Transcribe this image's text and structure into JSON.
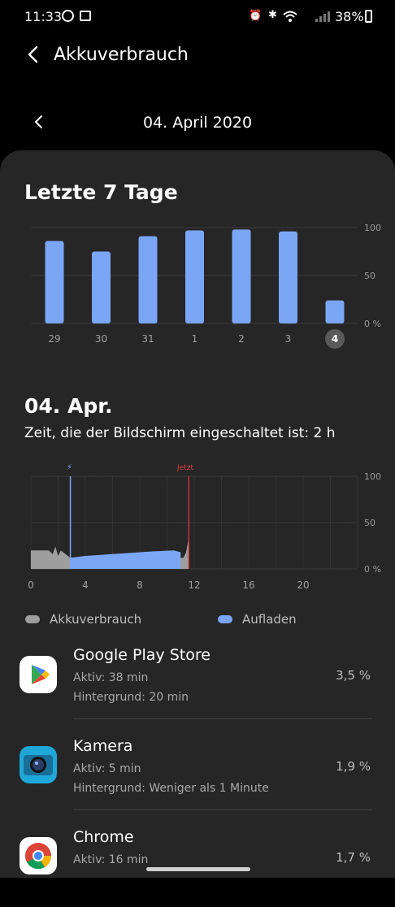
{
  "status": {
    "time": "11:33",
    "battery": "38%"
  },
  "header": {
    "title": "Akkuverbrauch",
    "date": "04. April 2020"
  },
  "week": {
    "title": "Letzte 7 Tage",
    "y_ticks": [
      "100",
      "50",
      "0 %"
    ]
  },
  "chart_data": [
    {
      "type": "bar",
      "categories": [
        "29",
        "30",
        "31",
        "1",
        "2",
        "3",
        "4"
      ],
      "values": [
        86,
        75,
        91,
        97,
        98,
        96,
        24
      ],
      "selected": "4",
      "ylim": [
        0,
        100
      ],
      "y_ticks": [
        "100",
        "50",
        "0 %"
      ],
      "bar_color": "#7aa6f5"
    },
    {
      "type": "area",
      "x_ticks": [
        "0",
        "4",
        "8",
        "12",
        "16",
        "20"
      ],
      "y_ticks": [
        "100",
        "50",
        "0 %"
      ],
      "xlim": [
        0,
        24
      ],
      "ylim": [
        0,
        100
      ],
      "now_label": "Jetzt",
      "charge_marker_x": 2.9,
      "now_x": 11.6,
      "usage": {
        "color": "#9e9e9e",
        "points": [
          [
            0,
            20
          ],
          [
            1.3,
            20
          ],
          [
            1.6,
            16
          ],
          [
            1.8,
            24
          ],
          [
            2,
            14
          ],
          [
            2.2,
            20
          ],
          [
            2.9,
            12
          ],
          [
            11.2,
            12
          ],
          [
            11.4,
            18
          ],
          [
            11.6,
            34
          ]
        ]
      },
      "charging": {
        "color": "#7aa6f5",
        "points": [
          [
            2.9,
            12
          ],
          [
            4,
            14
          ],
          [
            7,
            17
          ],
          [
            9,
            19
          ],
          [
            10.5,
            20
          ],
          [
            11,
            18
          ]
        ]
      }
    }
  ],
  "day": {
    "title": "04. Apr.",
    "screen_time": "Zeit, die der Bildschirm eingeschaltet ist: 2 h"
  },
  "legend": {
    "usage": "Akkuverbrauch",
    "charging": "Aufladen"
  },
  "apps": [
    {
      "name": "Google Play Store",
      "active": "Aktiv: 38 min",
      "background": "Hintergrund: 20 min",
      "percent": "3,5 %"
    },
    {
      "name": "Kamera",
      "active": "Aktiv: 5 min",
      "background": "Hintergrund: Weniger als 1 Minute",
      "percent": "1,9 %"
    },
    {
      "name": "Chrome",
      "active": "Aktiv: 16 min",
      "background": "",
      "percent": "1,7 %"
    }
  ]
}
